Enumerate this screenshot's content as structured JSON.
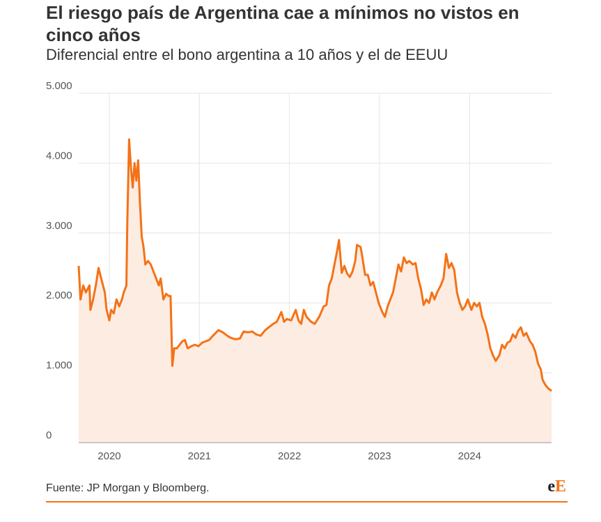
{
  "chart_data": {
    "type": "area",
    "title": "El riesgo país de Argentina cae a mínimos no vistos en cinco años",
    "subtitle": "Diferencial entre el bono argentina a 10 años y el de EEUU",
    "source": "Fuente: JP Morgan y Bloomberg.",
    "logo": [
      "e",
      "E"
    ],
    "color": "#f47216",
    "fill": "#fdece2",
    "grid": true,
    "xlim": [
      2019.66,
      2024.91
    ],
    "xticks": [
      2020,
      2021,
      2022,
      2023,
      2024
    ],
    "ylim": [
      0,
      5000
    ],
    "yticks": [
      0,
      {
        "value": 1000,
        "label": "1.000"
      },
      {
        "value": 2000,
        "label": "2.000"
      },
      {
        "value": 3000,
        "label": "3.000"
      },
      {
        "value": 4000,
        "label": "4.000"
      },
      {
        "value": 5000,
        "label": "5.000"
      }
    ],
    "x": [
      2019.66,
      2019.68,
      2019.71,
      2019.74,
      2019.78,
      2019.79,
      2019.82,
      2019.85,
      2019.88,
      2019.91,
      2019.95,
      2019.97,
      2020.0,
      2020.02,
      2020.05,
      2020.08,
      2020.11,
      2020.14,
      2020.16,
      2020.19,
      2020.2,
      2020.22,
      2020.24,
      2020.26,
      2020.28,
      2020.3,
      2020.32,
      2020.34,
      2020.36,
      2020.38,
      2020.4,
      2020.43,
      2020.46,
      2020.49,
      2020.52,
      2020.55,
      2020.57,
      2020.6,
      2020.63,
      2020.66,
      2020.68,
      2020.7,
      2020.72,
      2020.75,
      2020.78,
      2020.81,
      2020.84,
      2020.87,
      2020.91,
      2020.95,
      2020.99,
      2021.03,
      2021.07,
      2021.11,
      2021.15,
      2021.18,
      2021.21,
      2021.26,
      2021.31,
      2021.35,
      2021.4,
      2021.45,
      2021.49,
      2021.54,
      2021.59,
      2021.63,
      2021.68,
      2021.73,
      2021.77,
      2021.82,
      2021.86,
      2021.91,
      2021.94,
      2021.97,
      2022.02,
      2022.07,
      2022.1,
      2022.13,
      2022.16,
      2022.19,
      2022.24,
      2022.28,
      2022.33,
      2022.38,
      2022.41,
      2022.44,
      2022.47,
      2022.5,
      2022.53,
      2022.55,
      2022.58,
      2022.61,
      2022.64,
      2022.67,
      2022.7,
      2022.73,
      2022.75,
      2022.79,
      2022.81,
      2022.84,
      2022.87,
      2022.9,
      2022.93,
      2022.96,
      2022.99,
      2023.03,
      2023.06,
      2023.09,
      2023.12,
      2023.15,
      2023.18,
      2023.21,
      2023.24,
      2023.27,
      2023.3,
      2023.33,
      2023.37,
      2023.4,
      2023.43,
      2023.46,
      2023.49,
      2023.52,
      2023.55,
      2023.58,
      2023.61,
      2023.64,
      2023.68,
      2023.71,
      2023.74,
      2023.77,
      2023.8,
      2023.83,
      2023.86,
      2023.89,
      2023.92,
      2023.95,
      2023.98,
      2024.02,
      2024.05,
      2024.08,
      2024.11,
      2024.14,
      2024.17,
      2024.2,
      2024.23,
      2024.26,
      2024.29,
      2024.33,
      2024.36,
      2024.39,
      2024.42,
      2024.45,
      2024.48,
      2024.51,
      2024.54,
      2024.57,
      2024.6,
      2024.63,
      2024.67,
      2024.7,
      2024.73,
      2024.76,
      2024.79,
      2024.81,
      2024.84,
      2024.87,
      2024.91
    ],
    "values": [
      2530,
      2050,
      2250,
      2150,
      2250,
      1900,
      2050,
      2250,
      2500,
      2350,
      2150,
      1900,
      1750,
      1900,
      1850,
      2050,
      1950,
      2050,
      2150,
      2250,
      3150,
      4340,
      3940,
      3650,
      4000,
      3750,
      4040,
      3450,
      2950,
      2800,
      2550,
      2600,
      2550,
      2450,
      2350,
      2250,
      2350,
      2050,
      2130,
      2100,
      2100,
      1100,
      1350,
      1350,
      1400,
      1450,
      1470,
      1350,
      1380,
      1400,
      1380,
      1430,
      1450,
      1470,
      1530,
      1570,
      1610,
      1580,
      1530,
      1500,
      1480,
      1490,
      1590,
      1580,
      1590,
      1550,
      1530,
      1610,
      1650,
      1700,
      1730,
      1870,
      1730,
      1770,
      1750,
      1900,
      1750,
      1700,
      1900,
      1800,
      1730,
      1700,
      1800,
      1950,
      1970,
      2250,
      2350,
      2550,
      2750,
      2900,
      2430,
      2530,
      2420,
      2370,
      2450,
      2600,
      2830,
      2800,
      2650,
      2400,
      2400,
      2250,
      2300,
      2150,
      2000,
      1870,
      1800,
      1950,
      2050,
      2150,
      2350,
      2550,
      2450,
      2650,
      2570,
      2600,
      2550,
      2570,
      2350,
      2200,
      1970,
      2050,
      2000,
      2150,
      2050,
      2150,
      2250,
      2350,
      2700,
      2500,
      2570,
      2470,
      2150,
      2000,
      1900,
      1950,
      2050,
      1900,
      2000,
      1950,
      2000,
      1800,
      1700,
      1550,
      1350,
      1250,
      1170,
      1250,
      1400,
      1350,
      1430,
      1450,
      1550,
      1500,
      1600,
      1650,
      1530,
      1570,
      1450,
      1400,
      1300,
      1130,
      1050,
      900,
      830,
      780,
      740
    ]
  }
}
